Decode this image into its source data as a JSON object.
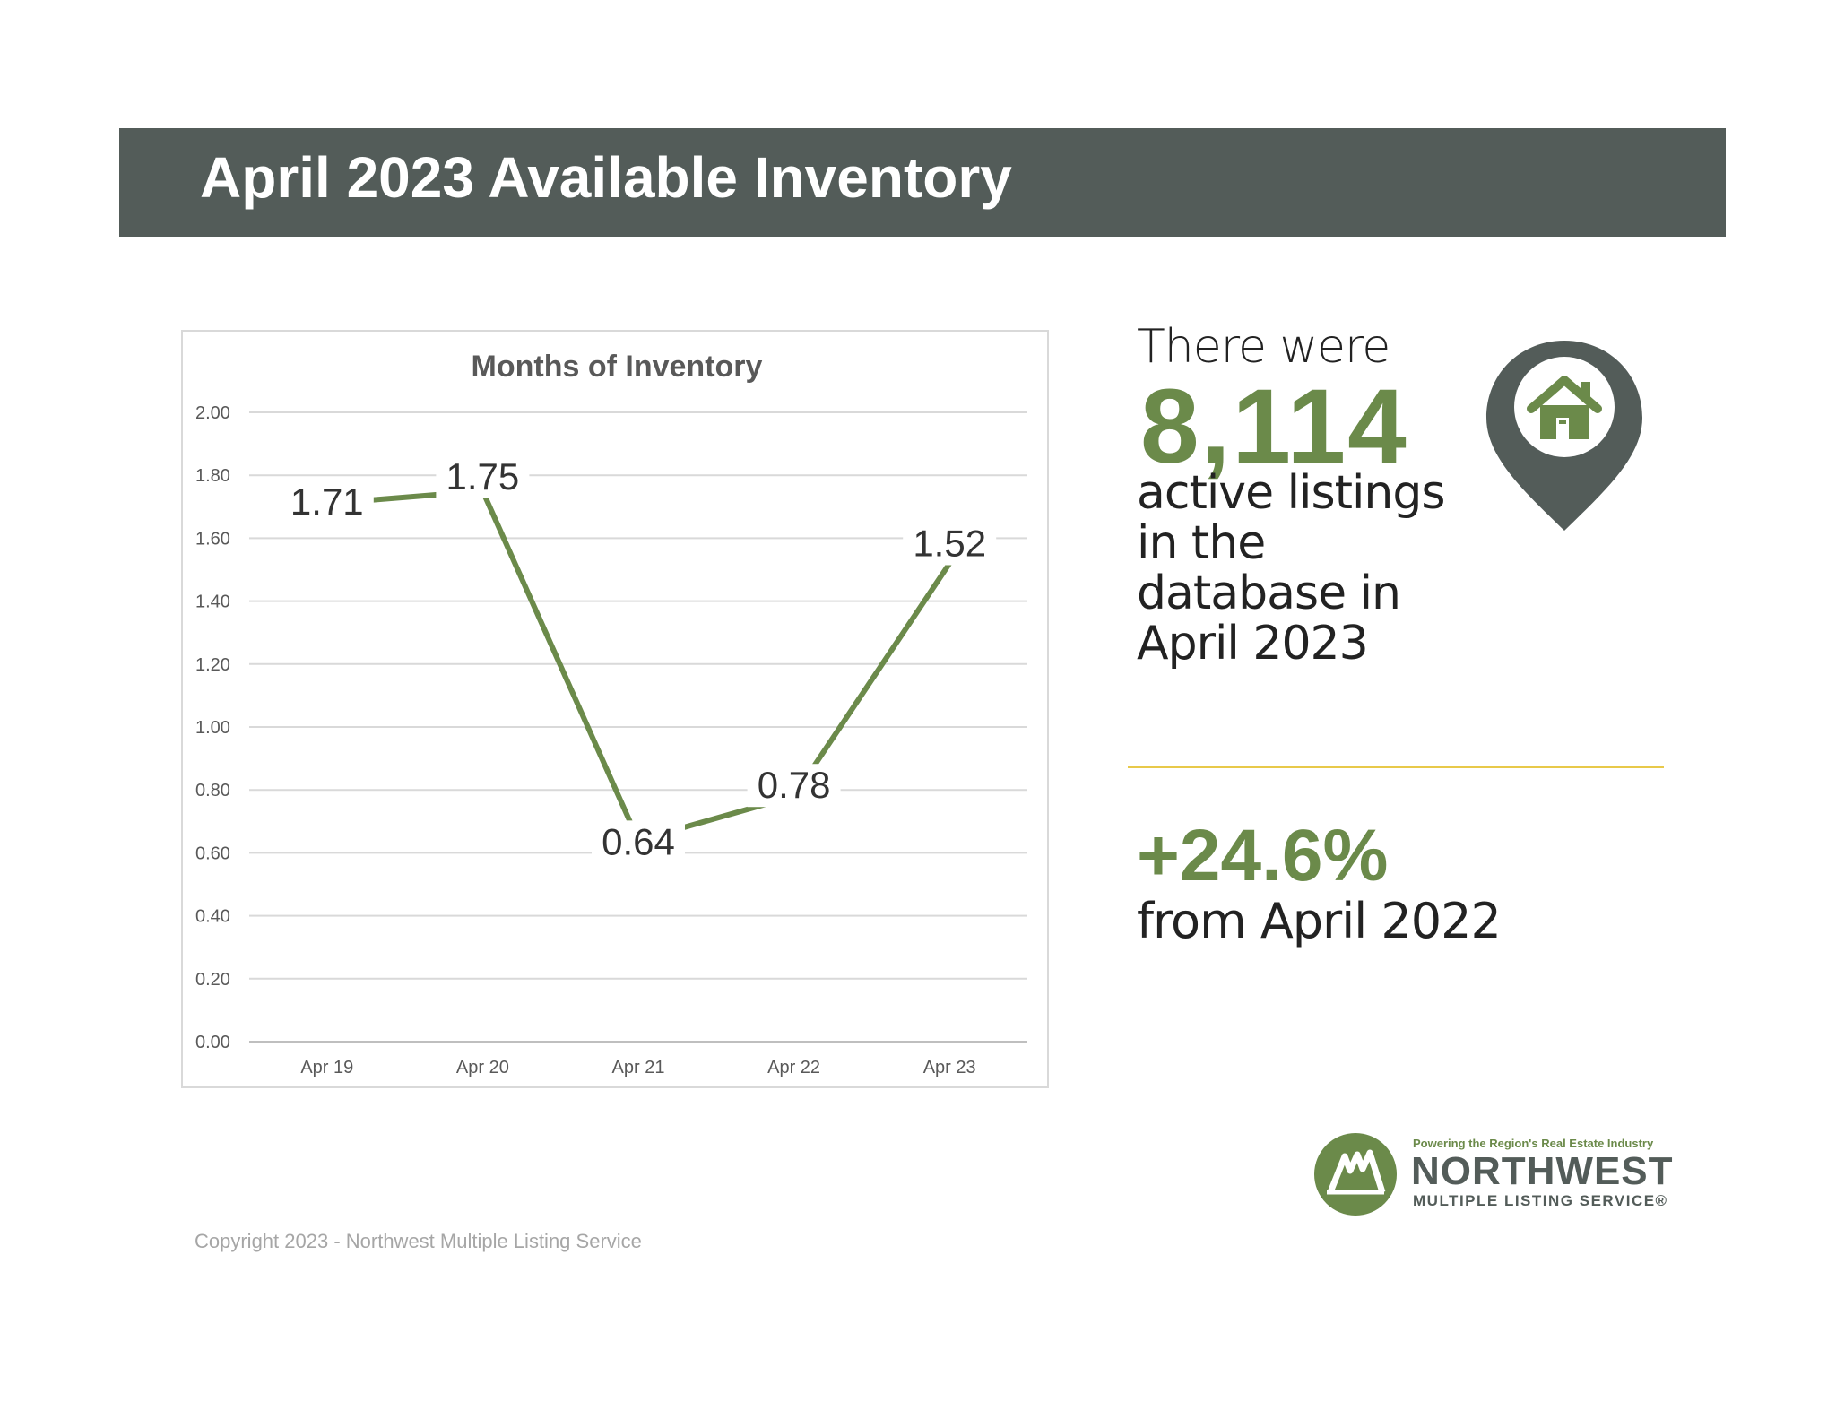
{
  "banner": {
    "title": "April 2023 Available Inventory"
  },
  "chart_data": {
    "type": "line",
    "title": "Months of Inventory",
    "categories": [
      "Apr 19",
      "Apr 20",
      "Apr 21",
      "Apr 22",
      "Apr 23"
    ],
    "values": [
      1.71,
      1.75,
      0.64,
      0.78,
      1.52
    ],
    "value_labels": [
      "1.71",
      "1.75",
      "0.64",
      "0.78",
      "1.52"
    ],
    "y_ticks": [
      "0.00",
      "0.20",
      "0.40",
      "0.60",
      "0.80",
      "1.00",
      "1.20",
      "1.40",
      "1.60",
      "1.80",
      "2.00"
    ],
    "ylim": [
      0,
      2
    ],
    "grid": true,
    "line_color": "#6b8a4a"
  },
  "stats": {
    "intro": "There were",
    "count": "8,114",
    "description": [
      "active listings",
      "in the",
      "database in",
      "April 2023"
    ],
    "change": "+24.6%",
    "change_text": "from April 2022"
  },
  "logo": {
    "tagline": "Powering the Region's Real Estate Industry",
    "name": "NORTHWEST",
    "sub": "MULTIPLE LISTING SERVICE®"
  },
  "icons": {
    "pin": "house-location-pin-icon",
    "logo": "tree-logo-icon"
  },
  "colors": {
    "accent": "#6b8a4a",
    "banner": "#535c59",
    "divider": "#e8c94a"
  },
  "footer": {
    "copyright": "Copyright 2023 - Northwest Multiple Listing Service"
  }
}
